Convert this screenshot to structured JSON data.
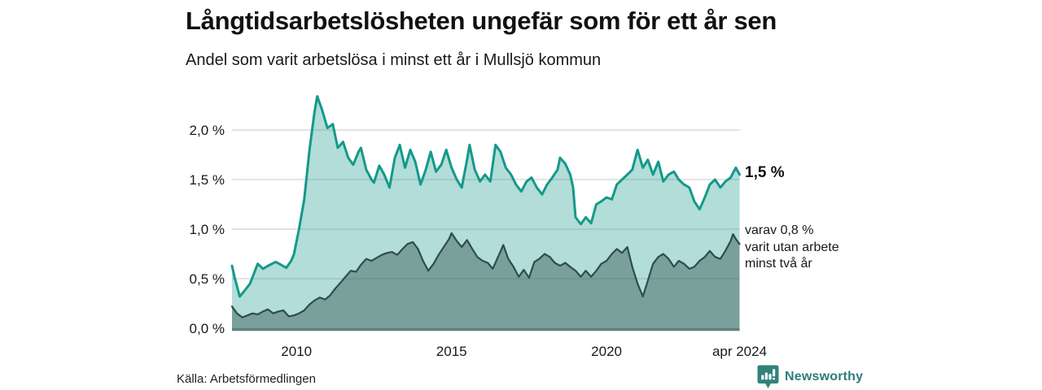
{
  "chart_data": {
    "type": "area",
    "title": "Långtidsarbetslösheten ungefär som för ett år sen",
    "subtitle": "Andel som varit arbetslösa i minst ett år i Mullsjö kommun",
    "grid": true,
    "legend": "end-of-line annotations",
    "x_range": [
      2007.92,
      2024.29
    ],
    "ylim": [
      0,
      2.4
    ],
    "y_ticks": [
      {
        "value": 0.0,
        "label": "0,0 %"
      },
      {
        "value": 0.5,
        "label": "0,5 %"
      },
      {
        "value": 1.0,
        "label": "1,0 %"
      },
      {
        "value": 1.5,
        "label": "1,5 %"
      },
      {
        "value": 2.0,
        "label": "2,0 %"
      }
    ],
    "x_ticks": [
      {
        "value": 2010,
        "label": "2010"
      },
      {
        "value": 2015,
        "label": "2015"
      },
      {
        "value": 2020,
        "label": "2020"
      },
      {
        "value": 2024.29,
        "label": "apr 2024"
      }
    ],
    "series": [
      {
        "id": "unemployed-min-one-year",
        "annotation": "1,5 %",
        "end_value_pct": 1.5,
        "line_color": "#14998a",
        "fill_color": "rgba(20,153,138,0.33)",
        "line_width": 3,
        "x": [
          2007.92,
          2008.0,
          2008.17,
          2008.33,
          2008.5,
          2008.75,
          2008.92,
          2009.08,
          2009.33,
          2009.5,
          2009.67,
          2009.83,
          2009.92,
          2010.08,
          2010.25,
          2010.42,
          2010.58,
          2010.67,
          2010.83,
          2010.92,
          2011.0,
          2011.17,
          2011.33,
          2011.5,
          2011.67,
          2011.83,
          2012.0,
          2012.08,
          2012.25,
          2012.42,
          2012.5,
          2012.67,
          2012.83,
          2013.0,
          2013.17,
          2013.33,
          2013.5,
          2013.67,
          2013.83,
          2014.0,
          2014.17,
          2014.33,
          2014.5,
          2014.67,
          2014.83,
          2015.0,
          2015.17,
          2015.33,
          2015.5,
          2015.58,
          2015.75,
          2015.92,
          2016.08,
          2016.25,
          2016.42,
          2016.58,
          2016.75,
          2016.92,
          2017.08,
          2017.25,
          2017.42,
          2017.58,
          2017.75,
          2017.92,
          2018.08,
          2018.25,
          2018.42,
          2018.5,
          2018.67,
          2018.83,
          2018.92,
          2019.0,
          2019.17,
          2019.33,
          2019.5,
          2019.67,
          2019.83,
          2020.0,
          2020.17,
          2020.33,
          2020.5,
          2020.67,
          2020.83,
          2021.0,
          2021.17,
          2021.33,
          2021.5,
          2021.67,
          2021.83,
          2022.0,
          2022.17,
          2022.33,
          2022.5,
          2022.67,
          2022.83,
          2023.0,
          2023.17,
          2023.33,
          2023.5,
          2023.67,
          2023.83,
          2024.0,
          2024.17,
          2024.29
        ],
        "values": [
          0.63,
          0.52,
          0.32,
          0.38,
          0.45,
          0.65,
          0.6,
          0.63,
          0.67,
          0.64,
          0.61,
          0.68,
          0.75,
          1.0,
          1.3,
          1.8,
          2.18,
          2.34,
          2.2,
          2.1,
          2.02,
          2.06,
          1.82,
          1.88,
          1.72,
          1.65,
          1.78,
          1.82,
          1.6,
          1.5,
          1.47,
          1.64,
          1.55,
          1.42,
          1.72,
          1.85,
          1.62,
          1.8,
          1.68,
          1.45,
          1.6,
          1.78,
          1.58,
          1.65,
          1.8,
          1.62,
          1.5,
          1.42,
          1.7,
          1.85,
          1.6,
          1.48,
          1.55,
          1.48,
          1.85,
          1.78,
          1.62,
          1.55,
          1.45,
          1.38,
          1.48,
          1.52,
          1.42,
          1.35,
          1.45,
          1.52,
          1.6,
          1.72,
          1.66,
          1.55,
          1.42,
          1.12,
          1.05,
          1.12,
          1.06,
          1.25,
          1.28,
          1.32,
          1.3,
          1.45,
          1.5,
          1.55,
          1.6,
          1.8,
          1.62,
          1.7,
          1.55,
          1.68,
          1.48,
          1.55,
          1.58,
          1.5,
          1.45,
          1.42,
          1.28,
          1.2,
          1.32,
          1.45,
          1.5,
          1.42,
          1.48,
          1.52,
          1.62,
          1.55
        ]
      },
      {
        "id": "unemployed-min-two-years",
        "annotation_lines": [
          "varav 0,8 %",
          "varit utan arbete",
          "minst två år"
        ],
        "end_value_pct": 0.8,
        "line_color": "#2e4d4b",
        "fill_color": "rgba(45,77,74,0.42)",
        "line_width": 2.2,
        "x": [
          2007.92,
          2008.08,
          2008.25,
          2008.42,
          2008.58,
          2008.75,
          2008.92,
          2009.08,
          2009.25,
          2009.42,
          2009.58,
          2009.75,
          2009.92,
          2010.08,
          2010.25,
          2010.42,
          2010.58,
          2010.75,
          2010.92,
          2011.08,
          2011.25,
          2011.42,
          2011.58,
          2011.75,
          2011.92,
          2012.08,
          2012.25,
          2012.42,
          2012.58,
          2012.75,
          2012.92,
          2013.08,
          2013.25,
          2013.42,
          2013.58,
          2013.75,
          2013.92,
          2014.08,
          2014.25,
          2014.42,
          2014.58,
          2014.75,
          2014.92,
          2015.0,
          2015.17,
          2015.33,
          2015.5,
          2015.67,
          2015.83,
          2016.0,
          2016.17,
          2016.33,
          2016.5,
          2016.67,
          2016.83,
          2017.0,
          2017.17,
          2017.33,
          2017.5,
          2017.67,
          2017.83,
          2018.0,
          2018.17,
          2018.33,
          2018.5,
          2018.67,
          2018.83,
          2019.0,
          2019.17,
          2019.33,
          2019.5,
          2019.67,
          2019.83,
          2020.0,
          2020.17,
          2020.33,
          2020.5,
          2020.67,
          2020.83,
          2021.0,
          2021.17,
          2021.33,
          2021.5,
          2021.67,
          2021.83,
          2022.0,
          2022.17,
          2022.33,
          2022.5,
          2022.67,
          2022.83,
          2023.0,
          2023.17,
          2023.33,
          2023.5,
          2023.67,
          2023.83,
          2024.0,
          2024.08,
          2024.17,
          2024.29
        ],
        "values": [
          0.22,
          0.15,
          0.11,
          0.13,
          0.15,
          0.14,
          0.17,
          0.19,
          0.15,
          0.17,
          0.18,
          0.12,
          0.13,
          0.15,
          0.18,
          0.24,
          0.28,
          0.31,
          0.29,
          0.33,
          0.4,
          0.46,
          0.52,
          0.58,
          0.57,
          0.64,
          0.7,
          0.68,
          0.71,
          0.74,
          0.76,
          0.77,
          0.74,
          0.8,
          0.85,
          0.87,
          0.8,
          0.68,
          0.58,
          0.65,
          0.74,
          0.82,
          0.9,
          0.96,
          0.88,
          0.82,
          0.89,
          0.8,
          0.72,
          0.68,
          0.66,
          0.6,
          0.72,
          0.84,
          0.7,
          0.62,
          0.52,
          0.59,
          0.51,
          0.67,
          0.7,
          0.75,
          0.72,
          0.66,
          0.63,
          0.66,
          0.62,
          0.58,
          0.52,
          0.58,
          0.52,
          0.58,
          0.65,
          0.68,
          0.75,
          0.8,
          0.76,
          0.82,
          0.62,
          0.45,
          0.32,
          0.48,
          0.65,
          0.72,
          0.75,
          0.7,
          0.62,
          0.68,
          0.65,
          0.6,
          0.62,
          0.68,
          0.72,
          0.78,
          0.72,
          0.7,
          0.78,
          0.88,
          0.95,
          0.9,
          0.85
        ]
      }
    ],
    "colors": {
      "grid": "#dcdcdc",
      "baseline_axis": "#5e807b",
      "text": "#1a1a1a"
    }
  },
  "footer": {
    "source": "Källa: Arbetsförmedlingen",
    "brand": "Newsworthy",
    "brand_color": "#2e7d78"
  }
}
